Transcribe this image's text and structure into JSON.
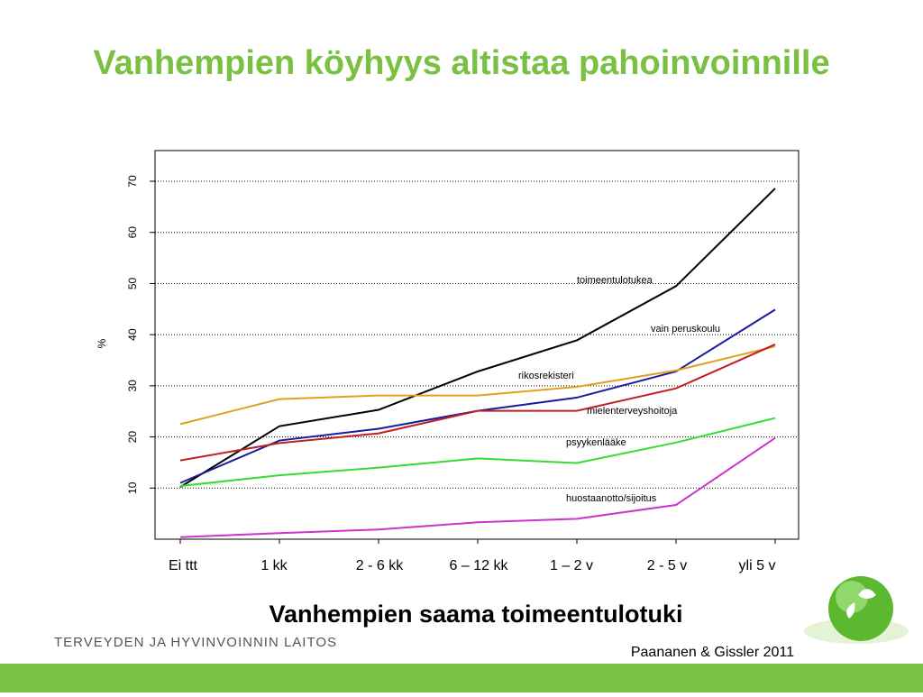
{
  "chart_data": {
    "type": "line",
    "title": "Vanhempien köyhyys altistaa pahoinvoinnille",
    "x_label": "Vanhempien saama toimeentulotuki",
    "y_label": "%",
    "categories": [
      "Ei ttt",
      "1 kk",
      "2 - 6 kk",
      "6 – 12 kk",
      "1 – 2 v",
      "2 - 5 v",
      "yli 5 v"
    ],
    "ylim": [
      0,
      76
    ],
    "yticks": [
      10,
      20,
      30,
      40,
      50,
      60,
      70
    ],
    "grid": true,
    "series": [
      {
        "name": "toimeentulotukea",
        "color": "#000000",
        "values": [
          10.2,
          22.1,
          25.3,
          32.8,
          38.9,
          49.5,
          68.6
        ]
      },
      {
        "name": "vain peruskoulu",
        "color": "#1a1aa0",
        "values": [
          11,
          19.3,
          21.6,
          25.1,
          27.7,
          32.8,
          44.9
        ]
      },
      {
        "name": "rikosrekisteri",
        "color": "#e0a020",
        "values": [
          22.5,
          27.4,
          28.1,
          28.1,
          29.8,
          33,
          37.7
        ]
      },
      {
        "name": "mielenterveyshoitoja",
        "color": "#c02020",
        "values": [
          15.4,
          18.8,
          20.7,
          25.1,
          25.1,
          29.5,
          38.1
        ]
      },
      {
        "name": "psyykenlääke",
        "color": "#33dd33",
        "values": [
          10.4,
          12.5,
          14,
          15.8,
          14.9,
          18.9,
          23.7
        ]
      },
      {
        "name": "huostaanotto/sijoitus",
        "color": "#cc33cc",
        "values": [
          0.4,
          1.2,
          1.9,
          3.3,
          4,
          6.7,
          19.8
        ]
      }
    ],
    "source": "Paananen & Gissler 2011"
  },
  "footer": {
    "organization": "TERVEYDEN JA HYVINVOINNIN LAITOS"
  }
}
